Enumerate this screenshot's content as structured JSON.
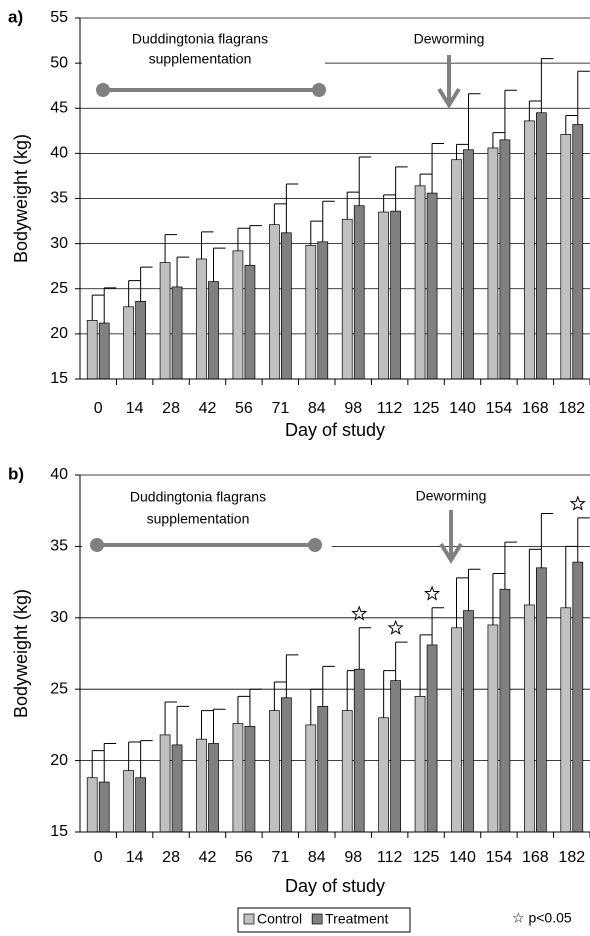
{
  "chart_data": [
    {
      "type": "bar",
      "panel_label": "a)",
      "xlabel": "Day of study",
      "ylabel": "Bodyweight (kg)",
      "annotations": {
        "supplementation": [
          "Duddingtonia flagrans",
          "supplementation"
        ],
        "deworming": "Deworming"
      },
      "categories": [
        "0",
        "14",
        "28",
        "42",
        "56",
        "71",
        "84",
        "98",
        "112",
        "125",
        "140",
        "154",
        "168",
        "182"
      ],
      "ylim": [
        15,
        55
      ],
      "yticks": [
        15,
        20,
        25,
        30,
        35,
        40,
        45,
        50,
        55
      ],
      "grid": true,
      "series": [
        {
          "color": "#c0c0c0",
          "values": [
            21.5,
            23.0,
            27.9,
            28.3,
            29.2,
            32.1,
            29.8,
            32.7,
            33.5,
            36.4,
            39.3,
            40.6,
            43.6,
            42.1
          ],
          "errors": [
            2.8,
            2.9,
            3.1,
            3.0,
            2.5,
            2.3,
            2.7,
            3.0,
            1.9,
            1.3,
            1.7,
            1.7,
            2.2,
            2.1
          ]
        },
        {
          "color": "#808080",
          "values": [
            21.2,
            23.6,
            25.2,
            25.8,
            27.6,
            31.2,
            30.2,
            34.2,
            33.6,
            35.6,
            40.4,
            41.5,
            44.5,
            43.2
          ],
          "errors": [
            3.9,
            3.8,
            3.3,
            3.7,
            4.4,
            5.4,
            4.5,
            5.4,
            4.9,
            5.5,
            6.2,
            5.5,
            6.0,
            5.9
          ]
        }
      ]
    },
    {
      "type": "bar",
      "panel_label": "b)",
      "xlabel": "Day of study",
      "ylabel": "Bodyweight (kg)",
      "annotations": {
        "supplementation": [
          "Duddingtonia flagrans",
          "supplementation"
        ],
        "deworming": "Deworming"
      },
      "categories": [
        "0",
        "14",
        "28",
        "42",
        "56",
        "71",
        "84",
        "98",
        "112",
        "125",
        "140",
        "154",
        "168",
        "182"
      ],
      "ylim": [
        15,
        40
      ],
      "yticks": [
        15,
        20,
        25,
        30,
        35,
        40
      ],
      "grid": true,
      "significant": [
        false,
        false,
        false,
        false,
        false,
        false,
        false,
        true,
        true,
        true,
        false,
        false,
        false,
        true
      ],
      "note": "☆ p<0.05",
      "series": [
        {
          "name": "Control",
          "color": "#c0c0c0",
          "values": [
            18.8,
            19.3,
            21.8,
            21.5,
            22.6,
            23.5,
            22.5,
            23.5,
            23.0,
            24.5,
            29.3,
            29.5,
            30.9,
            30.7
          ],
          "errors": [
            1.9,
            2.0,
            2.3,
            2.0,
            1.9,
            2.0,
            2.5,
            2.8,
            3.3,
            4.3,
            3.5,
            3.6,
            3.9,
            4.3
          ]
        },
        {
          "name": "Treatment",
          "color": "#808080",
          "values": [
            18.5,
            18.8,
            21.1,
            21.2,
            22.4,
            24.4,
            23.8,
            26.4,
            25.6,
            28.1,
            30.5,
            32.0,
            33.5,
            33.9
          ],
          "errors": [
            2.7,
            2.6,
            2.7,
            2.4,
            2.6,
            3.0,
            2.8,
            2.9,
            2.7,
            2.6,
            2.9,
            3.3,
            3.8,
            3.1
          ]
        }
      ]
    }
  ]
}
